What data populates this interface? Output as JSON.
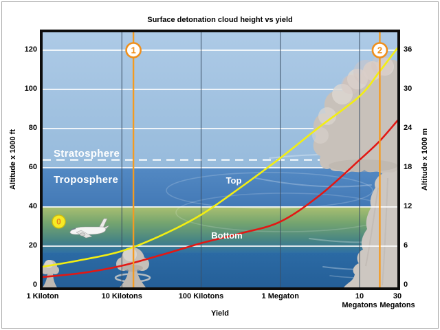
{
  "title": "Surface detonation cloud height vs yield",
  "chart_data": {
    "type": "line",
    "title": "Surface detonation cloud height vs yield",
    "xlabel": "Yield",
    "ylabel_left": "Altitude x 1000 ft",
    "ylabel_right": "Altitude x 1000 m",
    "x_scale": "log",
    "xlim_kilotons": [
      1,
      30000
    ],
    "ylim_kft": [
      0,
      129
    ],
    "grid": true,
    "x_ticks": [
      {
        "label": "1 Kiloton",
        "kt": 1
      },
      {
        "label": "10 Kilotons",
        "kt": 10
      },
      {
        "label": "100 Kilotons",
        "kt": 100
      },
      {
        "label": "1 Megaton",
        "kt": 1000
      },
      {
        "label": "10\nMegatons",
        "kt": 10000
      },
      {
        "label": "30\nMegatons",
        "kt": 30000
      }
    ],
    "y_ticks_left_kft": [
      0,
      20,
      40,
      60,
      80,
      100,
      120
    ],
    "y_ticks_right_km": [
      0,
      6,
      12,
      18,
      24,
      30,
      36
    ],
    "ft_per_m": 3.3333,
    "grid_x_kt": [
      10,
      100,
      1000,
      10000
    ],
    "tropopause_dashed_kft": 64,
    "zones": [
      {
        "label": "Stratosphere"
      },
      {
        "label": "Troposphere"
      }
    ],
    "series": [
      {
        "name": "Top",
        "color": "#f3ee12",
        "points_kt_kft": [
          [
            1,
            9.5
          ],
          [
            3.16,
            13
          ],
          [
            10,
            17.5
          ],
          [
            31.6,
            25.5
          ],
          [
            100,
            36
          ],
          [
            316,
            50
          ],
          [
            1000,
            65
          ],
          [
            3160,
            81
          ],
          [
            10000,
            96.5
          ],
          [
            17800,
            109
          ],
          [
            30000,
            121
          ]
        ]
      },
      {
        "name": "Bottom",
        "color": "#e31713",
        "points_kt_kft": [
          [
            1,
            4.2
          ],
          [
            3.16,
            6.3
          ],
          [
            10,
            10
          ],
          [
            31.6,
            15.5
          ],
          [
            100,
            21.5
          ],
          [
            316,
            26.5
          ],
          [
            1000,
            32.5
          ],
          [
            3160,
            46
          ],
          [
            10000,
            64
          ],
          [
            17800,
            73.5
          ],
          [
            30000,
            84
          ]
        ]
      }
    ],
    "markers": [
      {
        "label": "0",
        "yield_kt": 1.6,
        "alt_kft": 32.5,
        "style": "yellow"
      },
      {
        "label": "1",
        "yield_kt": 14,
        "style": "orange-line"
      },
      {
        "label": "2",
        "yield_kt": 18000,
        "style": "orange-line"
      }
    ]
  },
  "colors": {
    "marker_orange": "#ef8f1b",
    "marker0_fill": "#f7ea25",
    "marker0_text": "#e8821c",
    "top_curve": "#f3ee12",
    "bottom_curve": "#e31713",
    "grid_white": "#ffffff",
    "decade_line": "#3a4e63",
    "sky_light": "#a3c4e3",
    "sky_mid": "#4c84bf",
    "ground_green": "#8fae62",
    "sea_blue": "#2b6aa5",
    "cloud_gray": "#c8c1ba",
    "frame_black": "#0d0d0d"
  }
}
